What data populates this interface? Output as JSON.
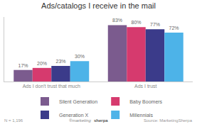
{
  "chart_data": {
    "type": "bar",
    "title": "Ads/catalogs I receive in the mail",
    "categories": [
      "Ads I don't trust that much",
      "Ads I trust"
    ],
    "series": [
      {
        "name": "Silent Generation",
        "color": "#7b5b8e",
        "values": [
          17,
          83
        ],
        "value_labels": [
          "17%",
          "83%"
        ]
      },
      {
        "name": "Baby Boomers",
        "color": "#d63a6e",
        "values": [
          20,
          80
        ],
        "value_labels": [
          "20%",
          "80%"
        ]
      },
      {
        "name": "Generation X",
        "color": "#3b3b8a",
        "values": [
          23,
          77
        ],
        "value_labels": [
          "23%",
          "77%"
        ]
      },
      {
        "name": "Millennials",
        "color": "#4db3e8",
        "values": [
          30,
          72
        ],
        "value_labels": [
          "30%",
          "72%"
        ]
      }
    ],
    "ylim": [
      0,
      95
    ],
    "grid": false,
    "legend": "bottom",
    "data_labels": true,
    "tick_labels": "x",
    "annotations": [
      "N = 1,196",
      "®marketing",
      "sherpa",
      "Source: MarketingSherpa"
    ]
  }
}
